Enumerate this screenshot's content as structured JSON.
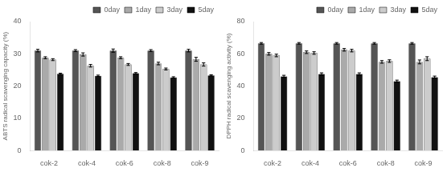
{
  "chart_data": [
    {
      "type": "bar",
      "y_label": "ABTS radical scavenging capacity (%)",
      "categories": [
        "cok-2",
        "cok-4",
        "cok-6",
        "cok-8",
        "cok-9"
      ],
      "series": [
        {
          "name": "0day",
          "color": "#555555",
          "values": [
            31.0,
            31.0,
            31.0,
            31.0,
            31.0
          ],
          "errors": [
            0.4,
            0.3,
            0.5,
            0.3,
            0.4
          ]
        },
        {
          "name": "1day",
          "color": "#aaaaaa",
          "values": [
            28.8,
            29.8,
            28.8,
            27.0,
            28.3
          ],
          "errors": [
            0.3,
            0.5,
            0.3,
            0.4,
            0.6
          ]
        },
        {
          "name": "3day",
          "color": "#cccccc",
          "values": [
            28.2,
            26.3,
            26.7,
            25.3,
            26.7
          ],
          "errors": [
            0.3,
            0.4,
            0.3,
            0.3,
            0.5
          ]
        },
        {
          "name": "5day",
          "color": "#111111",
          "values": [
            23.8,
            23.2,
            24.0,
            22.7,
            23.3
          ],
          "errors": [
            0.2,
            0.2,
            0.2,
            0.2,
            0.2
          ]
        }
      ],
      "ylim": [
        0,
        40
      ],
      "yticks": [
        0,
        10,
        20,
        30,
        40
      ],
      "grid": false,
      "legend": "upper right"
    },
    {
      "type": "bar",
      "y_label": "DPPH radical scavenging activity (%)",
      "categories": [
        "cok-2",
        "cok-4",
        "cok-6",
        "cok-8",
        "cok-9"
      ],
      "series": [
        {
          "name": "0day",
          "color": "#555555",
          "values": [
            66.5,
            66.5,
            66.5,
            66.5,
            66.5
          ],
          "errors": [
            0.5,
            0.5,
            0.5,
            0.5,
            0.5
          ]
        },
        {
          "name": "1day",
          "color": "#aaaaaa",
          "values": [
            60.0,
            61.0,
            62.5,
            55.0,
            55.0
          ],
          "errors": [
            0.8,
            0.8,
            0.8,
            0.8,
            1.2
          ]
        },
        {
          "name": "3day",
          "color": "#cccccc",
          "values": [
            59.0,
            60.5,
            62.0,
            55.5,
            57.0
          ],
          "errors": [
            0.8,
            0.8,
            0.8,
            0.8,
            1.2
          ]
        },
        {
          "name": "5day",
          "color": "#111111",
          "values": [
            46.0,
            47.5,
            47.5,
            43.0,
            45.5
          ],
          "errors": [
            0.7,
            0.7,
            0.7,
            0.7,
            0.7
          ]
        }
      ],
      "ylim": [
        0,
        80
      ],
      "yticks": [
        0,
        20,
        40,
        60,
        80
      ],
      "grid": false,
      "legend": "upper right"
    }
  ]
}
